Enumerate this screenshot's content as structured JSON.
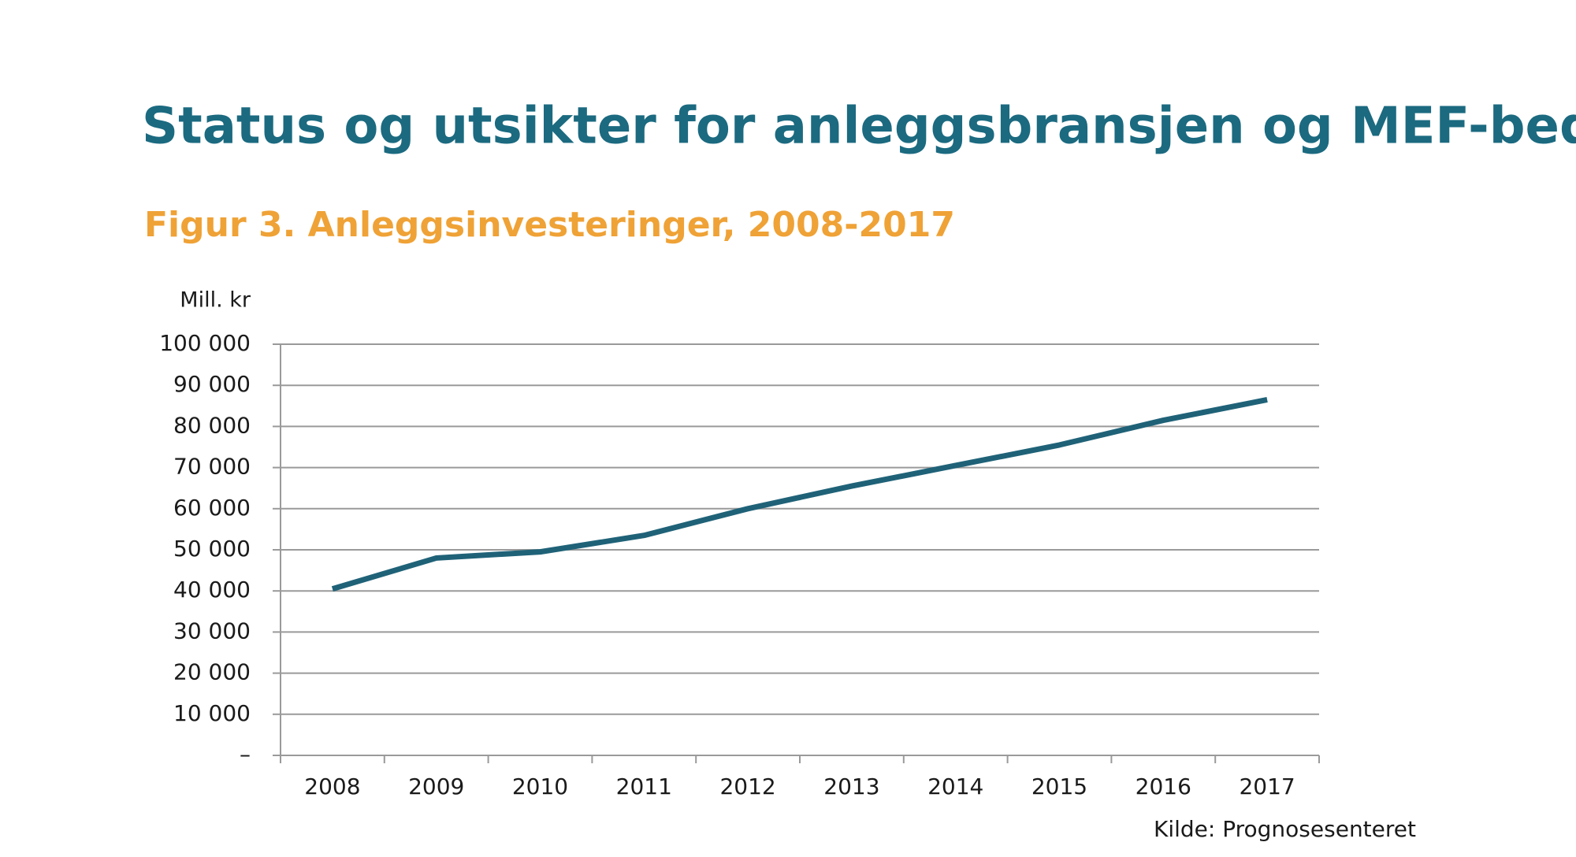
{
  "chart_data": {
    "type": "line",
    "title": "Status og utsikter for anleggsbransjen og MEF-bedriftene",
    "subtitle": "Figur 3. Anleggsinvesteringer, 2008-2017",
    "y_label": "Mill. kr",
    "source": "Kilde: Prognosesenteret",
    "categories": [
      "2008",
      "2009",
      "2010",
      "2011",
      "2012",
      "2013",
      "2014",
      "2015",
      "2016",
      "2017"
    ],
    "series": [
      {
        "name": "Anleggsinvesteringer",
        "color": "#1f6278",
        "values": [
          40500,
          48000,
          49500,
          53500,
          60000,
          65500,
          70500,
          75500,
          81500,
          86500
        ]
      }
    ],
    "ylim": [
      0,
      100000
    ],
    "yticks": [
      {
        "value": 0,
        "label": "–"
      },
      {
        "value": 10000,
        "label": "10 000"
      },
      {
        "value": 20000,
        "label": "20 000"
      },
      {
        "value": 30000,
        "label": "30 000"
      },
      {
        "value": 40000,
        "label": "40 000"
      },
      {
        "value": 50000,
        "label": "50 000"
      },
      {
        "value": 60000,
        "label": "60 000"
      },
      {
        "value": 70000,
        "label": "70 000"
      },
      {
        "value": 80000,
        "label": "80 000"
      },
      {
        "value": 90000,
        "label": "90 000"
      },
      {
        "value": 100000,
        "label": "100 000"
      }
    ],
    "grid": true
  }
}
